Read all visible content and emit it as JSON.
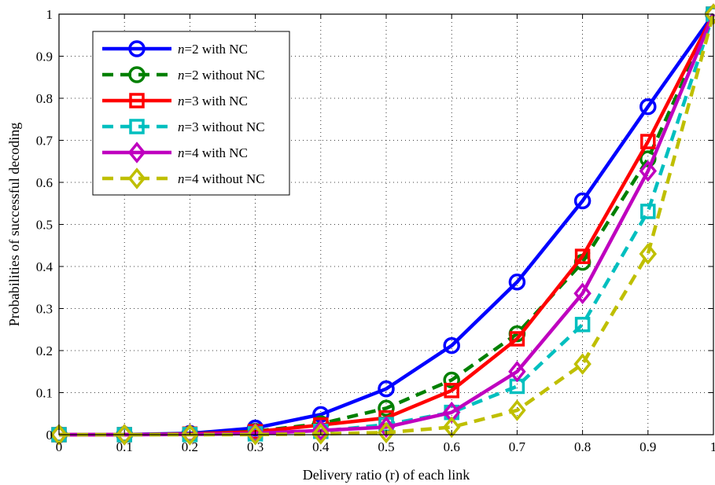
{
  "chart_data": {
    "type": "line",
    "title": "",
    "xlabel": "Delivery ratio (r) of each link",
    "ylabel": "Probabilities of successful decoding",
    "xlim": [
      0,
      1
    ],
    "ylim": [
      0,
      1
    ],
    "x_ticks": [
      "0",
      "0.1",
      "0.2",
      "0.3",
      "0.4",
      "0.5",
      "0.6",
      "0.7",
      "0.8",
      "0.9",
      "1"
    ],
    "y_ticks": [
      "0",
      "0.1",
      "0.2",
      "0.3",
      "0.4",
      "0.5",
      "0.6",
      "0.7",
      "0.8",
      "0.9",
      "1"
    ],
    "grid": true,
    "legend_position": "top-left",
    "x": [
      0,
      0.1,
      0.2,
      0.3,
      0.4,
      0.5,
      0.6,
      0.7,
      0.8,
      0.9,
      1
    ],
    "series": [
      {
        "name": "n=2 with NC",
        "color": "#0000ff",
        "dash": "solid",
        "marker": "circle",
        "values": [
          0,
          0.0002,
          0.003,
          0.016,
          0.048,
          0.109,
          0.212,
          0.363,
          0.556,
          0.78,
          1.0
        ]
      },
      {
        "name": "n=2 without NC",
        "color": "#008000",
        "dash": "dashed",
        "marker": "circle",
        "values": [
          0,
          0.0001,
          0.0016,
          0.008,
          0.026,
          0.063,
          0.13,
          0.24,
          0.41,
          0.656,
          1.0
        ]
      },
      {
        "name": "n=3 with NC",
        "color": "#ff0000",
        "dash": "solid",
        "marker": "square",
        "values": [
          0,
          0.0001,
          0.0014,
          0.007,
          0.023,
          0.04,
          0.105,
          0.228,
          0.424,
          0.697,
          1.0
        ]
      },
      {
        "name": "n=3 without NC",
        "color": "#00bfbf",
        "dash": "dashed",
        "marker": "square",
        "values": [
          0,
          0,
          0.0004,
          0.002,
          0.008,
          0.024,
          0.053,
          0.115,
          0.262,
          0.531,
          1.0
        ]
      },
      {
        "name": "n=4 with NC",
        "color": "#bf00bf",
        "dash": "solid",
        "marker": "diamond",
        "values": [
          0,
          0,
          0.0007,
          0.003,
          0.01,
          0.018,
          0.053,
          0.15,
          0.336,
          0.627,
          1.0
        ]
      },
      {
        "name": "n=4 without NC",
        "color": "#bfbf00",
        "dash": "dashed",
        "marker": "diamond",
        "values": [
          0,
          0,
          0,
          0.0004,
          0.002,
          0.005,
          0.018,
          0.058,
          0.168,
          0.43,
          1.0
        ]
      }
    ]
  }
}
